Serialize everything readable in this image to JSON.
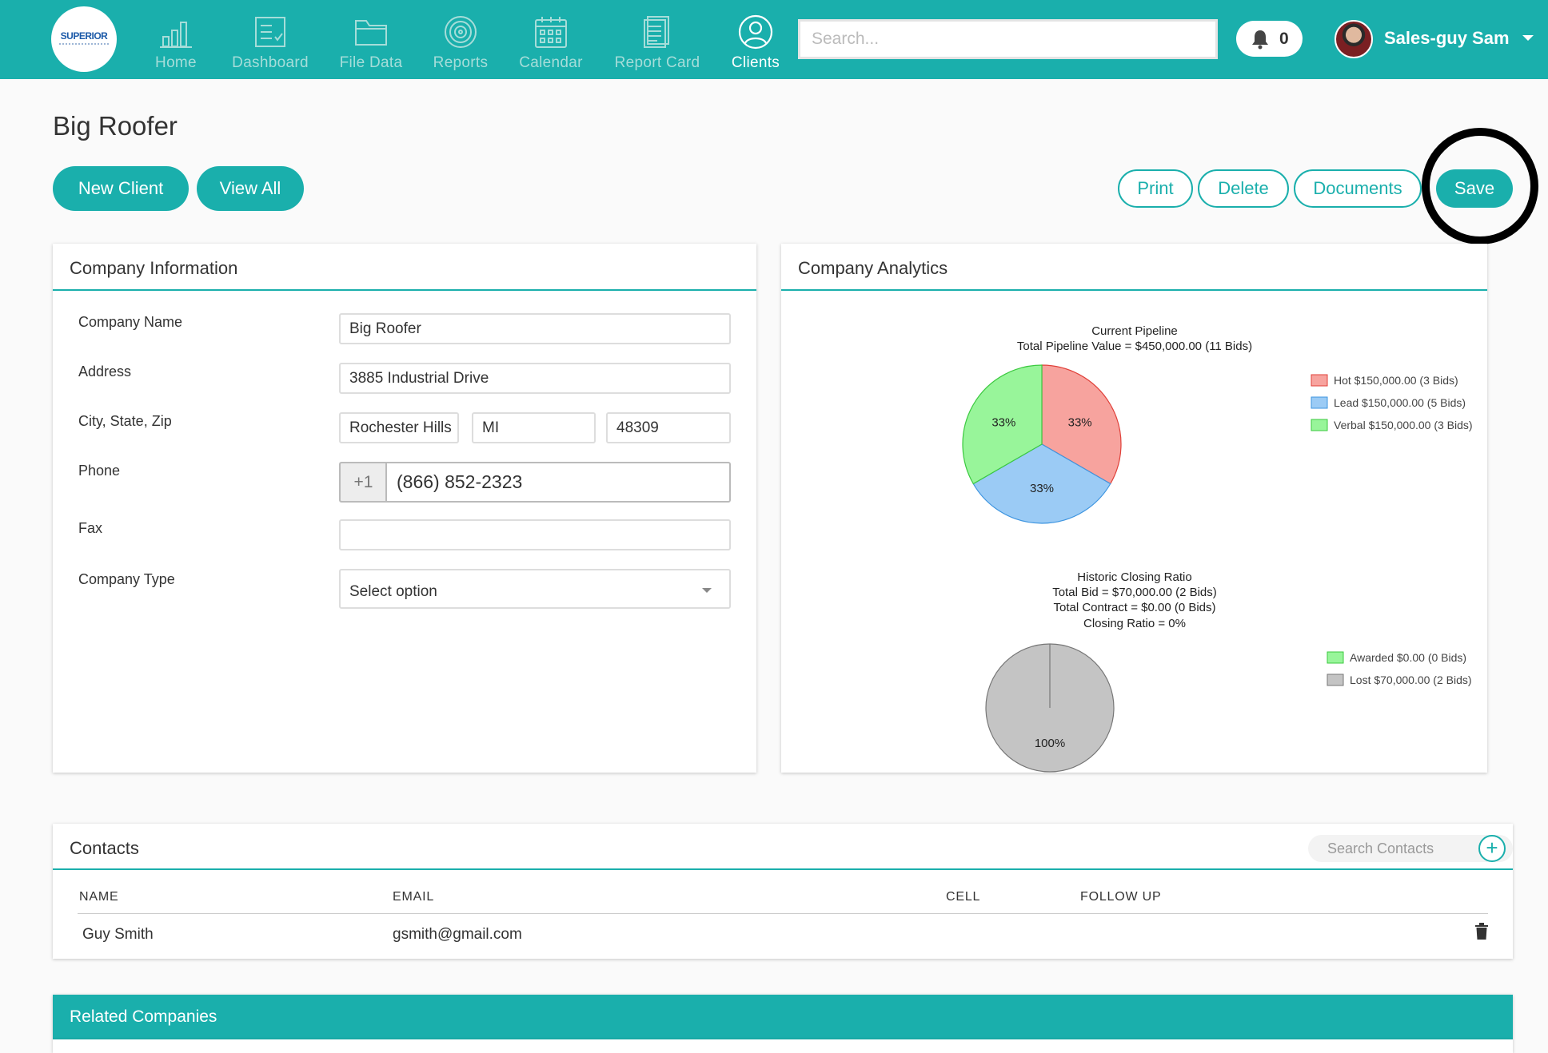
{
  "brand": {
    "logo_text": "SUPERIOR",
    "accent": "#1aafac"
  },
  "nav": {
    "items": [
      {
        "label": "Home",
        "icon": "bar-chart-icon"
      },
      {
        "label": "Dashboard",
        "icon": "checklist-icon"
      },
      {
        "label": "File Data",
        "icon": "folder-icon"
      },
      {
        "label": "Reports",
        "icon": "target-icon"
      },
      {
        "label": "Calendar",
        "icon": "calendar-icon"
      },
      {
        "label": "Report Card",
        "icon": "document-icon"
      },
      {
        "label": "Clients",
        "icon": "user-icon",
        "active": true
      }
    ],
    "search_placeholder": "Search...",
    "notification_count": "0",
    "user_name": "Sales-guy Sam"
  },
  "page": {
    "title": "Big Roofer",
    "buttons": {
      "new_client": "New Client",
      "view_all": "View All",
      "print": "Print",
      "delete": "Delete",
      "documents": "Documents",
      "save": "Save"
    }
  },
  "company_info": {
    "title": "Company Information",
    "fields": {
      "name_label": "Company Name",
      "name_value": "Big Roofer",
      "address_label": "Address",
      "address_value": "3885 Industrial Drive",
      "csz_label": "City, State, Zip",
      "city_value": "Rochester Hills",
      "state_value": "MI",
      "zip_value": "48309",
      "phone_label": "Phone",
      "phone_prefix": "+1",
      "phone_value": "(866) 852-2323",
      "fax_label": "Fax",
      "fax_value": "",
      "type_label": "Company Type",
      "type_value": "Select option"
    }
  },
  "analytics": {
    "title": "Company Analytics"
  },
  "chart_data": [
    {
      "type": "pie",
      "title": "Current Pipeline",
      "subtitle": "Total Pipeline Value = $450,000.00 (11 Bids)",
      "slices": [
        {
          "label": "Hot $150,000.00 (3 Bids)",
          "value": 150000,
          "percent_label": "33%",
          "color": "#f7a39e",
          "stroke": "#e0413a"
        },
        {
          "label": "Lead $150,000.00 (5 Bids)",
          "value": 150000,
          "percent_label": "33%",
          "color": "#9bcbf5",
          "stroke": "#3e95e0"
        },
        {
          "label": "Verbal $150,000.00 (3 Bids)",
          "value": 150000,
          "percent_label": "33%",
          "color": "#98f59a",
          "stroke": "#3cc940"
        }
      ],
      "legend": "right"
    },
    {
      "type": "pie",
      "title": "Historic Closing Ratio",
      "subtitle_lines": [
        "Total Bid = $70,000.00 (2 Bids)",
        "Total Contract = $0.00 (0 Bids)",
        "Closing Ratio = 0%"
      ],
      "slices": [
        {
          "label": "Awarded $0.00 (0 Bids)",
          "value": 0,
          "color": "#98f59a",
          "stroke": "#3cc940"
        },
        {
          "label": "Lost $70,000.00 (2 Bids)",
          "value": 70000,
          "percent_label": "100%",
          "color": "#c4c4c4",
          "stroke": "#777777"
        }
      ],
      "legend": "right"
    }
  ],
  "contacts": {
    "title": "Contacts",
    "search_placeholder": "Search Contacts",
    "columns": [
      "NAME",
      "EMAIL",
      "CELL",
      "FOLLOW UP"
    ],
    "rows": [
      {
        "name": "Guy Smith",
        "email": "gsmith@gmail.com",
        "cell": "",
        "follow_up": ""
      }
    ]
  },
  "related": {
    "title": "Related Companies"
  }
}
